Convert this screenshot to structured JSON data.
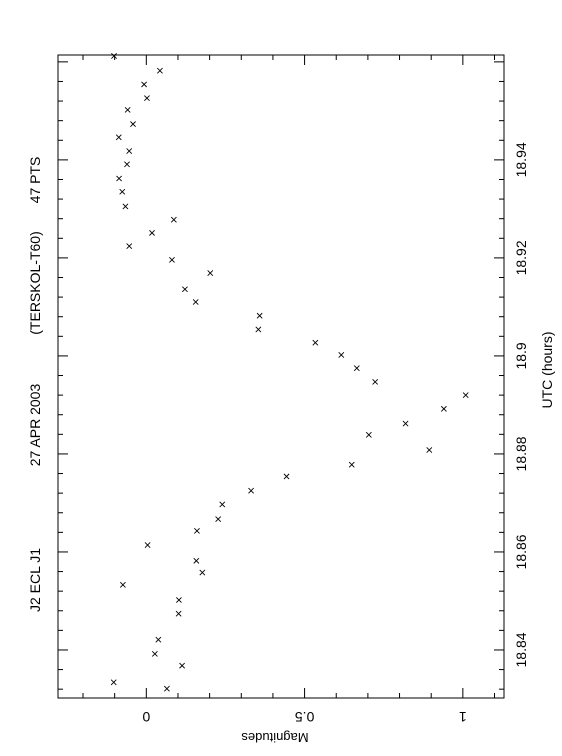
{
  "chart_data": {
    "type": "scatter",
    "title": {
      "object": "J2 ECL J1",
      "date": "27 APR 2003",
      "instrument": "(TERSKOL-T60)",
      "points": "47 PTS"
    },
    "xlabel": "UTC (hours)",
    "ylabel": "Magnitudes",
    "xlim": [
      18.8302,
      18.9614
    ],
    "ylim": [
      -0.279,
      1.13
    ],
    "y_inverted": true,
    "grid": false,
    "legend": "none",
    "marker": "x",
    "x_ticks": [
      "18.84",
      "18.86",
      "18.88",
      "18.9",
      "18.92",
      "18.94"
    ],
    "y_ticks": [
      "0",
      "0.5",
      "1"
    ],
    "series": [
      {
        "x": [
          18.8334,
          18.8321,
          18.8368,
          18.8392,
          18.8421,
          18.8474,
          18.8502,
          18.8533,
          18.8558,
          18.8582,
          18.8614,
          18.8643,
          18.8667,
          18.8697,
          18.8725,
          18.8754,
          18.8778,
          18.8808,
          18.8839,
          18.8862,
          18.8892,
          18.892,
          18.8947,
          18.8975,
          18.9002,
          18.9027,
          18.9054,
          18.9082,
          18.911,
          18.9136,
          18.9169,
          18.9196,
          18.9224,
          18.9251,
          18.9278,
          18.9305,
          18.9335,
          18.9362,
          18.9391,
          18.9418,
          18.9446,
          18.9473,
          18.9502,
          18.9526,
          18.9554,
          18.9582,
          18.9612
        ],
        "y": [
          -0.103,
          0.065,
          0.113,
          0.027,
          0.038,
          0.102,
          0.103,
          -0.074,
          0.177,
          0.158,
          0.004,
          0.16,
          0.227,
          0.24,
          0.331,
          0.443,
          0.649,
          0.894,
          0.703,
          0.819,
          0.94,
          1.009,
          0.723,
          0.665,
          0.616,
          0.534,
          0.354,
          0.358,
          0.156,
          0.122,
          0.202,
          0.081,
          -0.054,
          0.018,
          0.087,
          -0.066,
          -0.076,
          -0.086,
          -0.061,
          -0.054,
          -0.087,
          -0.042,
          -0.059,
          0.002,
          -0.007,
          0.043,
          -0.102
        ]
      }
    ]
  }
}
